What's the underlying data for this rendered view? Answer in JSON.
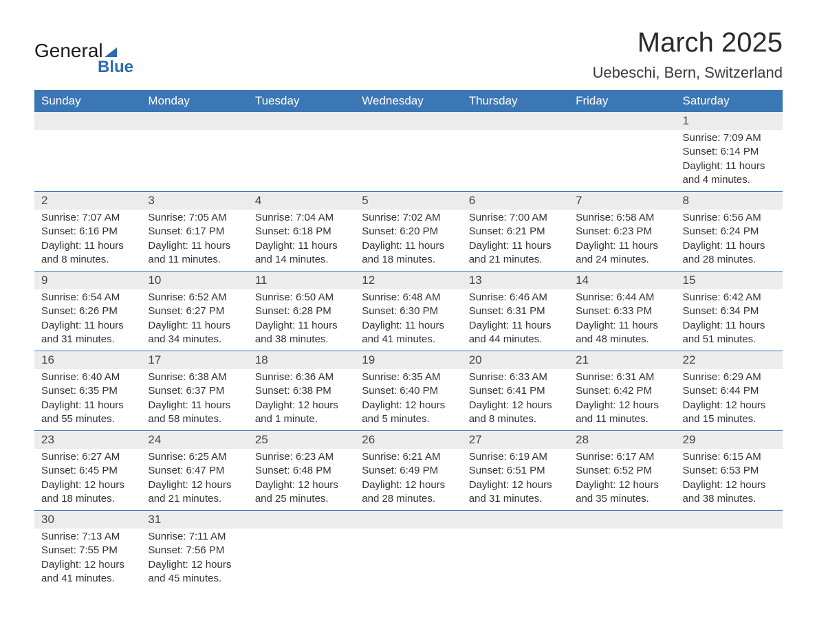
{
  "logo": {
    "text1": "General",
    "text2": "Blue"
  },
  "header": {
    "month_title": "March 2025",
    "location": "Uebeschi, Bern, Switzerland"
  },
  "colors": {
    "header_bg": "#3b76b5",
    "header_text": "#ffffff",
    "daynum_bg": "#ececec",
    "row_border": "#3b76b5",
    "body_text": "#333333"
  },
  "weekdays": [
    "Sunday",
    "Monday",
    "Tuesday",
    "Wednesday",
    "Thursday",
    "Friday",
    "Saturday"
  ],
  "weeks": [
    [
      null,
      null,
      null,
      null,
      null,
      null,
      {
        "n": "1",
        "sunrise": "7:09 AM",
        "sunset": "6:14 PM",
        "daylight": "11 hours and 4 minutes."
      }
    ],
    [
      {
        "n": "2",
        "sunrise": "7:07 AM",
        "sunset": "6:16 PM",
        "daylight": "11 hours and 8 minutes."
      },
      {
        "n": "3",
        "sunrise": "7:05 AM",
        "sunset": "6:17 PM",
        "daylight": "11 hours and 11 minutes."
      },
      {
        "n": "4",
        "sunrise": "7:04 AM",
        "sunset": "6:18 PM",
        "daylight": "11 hours and 14 minutes."
      },
      {
        "n": "5",
        "sunrise": "7:02 AM",
        "sunset": "6:20 PM",
        "daylight": "11 hours and 18 minutes."
      },
      {
        "n": "6",
        "sunrise": "7:00 AM",
        "sunset": "6:21 PM",
        "daylight": "11 hours and 21 minutes."
      },
      {
        "n": "7",
        "sunrise": "6:58 AM",
        "sunset": "6:23 PM",
        "daylight": "11 hours and 24 minutes."
      },
      {
        "n": "8",
        "sunrise": "6:56 AM",
        "sunset": "6:24 PM",
        "daylight": "11 hours and 28 minutes."
      }
    ],
    [
      {
        "n": "9",
        "sunrise": "6:54 AM",
        "sunset": "6:26 PM",
        "daylight": "11 hours and 31 minutes."
      },
      {
        "n": "10",
        "sunrise": "6:52 AM",
        "sunset": "6:27 PM",
        "daylight": "11 hours and 34 minutes."
      },
      {
        "n": "11",
        "sunrise": "6:50 AM",
        "sunset": "6:28 PM",
        "daylight": "11 hours and 38 minutes."
      },
      {
        "n": "12",
        "sunrise": "6:48 AM",
        "sunset": "6:30 PM",
        "daylight": "11 hours and 41 minutes."
      },
      {
        "n": "13",
        "sunrise": "6:46 AM",
        "sunset": "6:31 PM",
        "daylight": "11 hours and 44 minutes."
      },
      {
        "n": "14",
        "sunrise": "6:44 AM",
        "sunset": "6:33 PM",
        "daylight": "11 hours and 48 minutes."
      },
      {
        "n": "15",
        "sunrise": "6:42 AM",
        "sunset": "6:34 PM",
        "daylight": "11 hours and 51 minutes."
      }
    ],
    [
      {
        "n": "16",
        "sunrise": "6:40 AM",
        "sunset": "6:35 PM",
        "daylight": "11 hours and 55 minutes."
      },
      {
        "n": "17",
        "sunrise": "6:38 AM",
        "sunset": "6:37 PM",
        "daylight": "11 hours and 58 minutes."
      },
      {
        "n": "18",
        "sunrise": "6:36 AM",
        "sunset": "6:38 PM",
        "daylight": "12 hours and 1 minute."
      },
      {
        "n": "19",
        "sunrise": "6:35 AM",
        "sunset": "6:40 PM",
        "daylight": "12 hours and 5 minutes."
      },
      {
        "n": "20",
        "sunrise": "6:33 AM",
        "sunset": "6:41 PM",
        "daylight": "12 hours and 8 minutes."
      },
      {
        "n": "21",
        "sunrise": "6:31 AM",
        "sunset": "6:42 PM",
        "daylight": "12 hours and 11 minutes."
      },
      {
        "n": "22",
        "sunrise": "6:29 AM",
        "sunset": "6:44 PM",
        "daylight": "12 hours and 15 minutes."
      }
    ],
    [
      {
        "n": "23",
        "sunrise": "6:27 AM",
        "sunset": "6:45 PM",
        "daylight": "12 hours and 18 minutes."
      },
      {
        "n": "24",
        "sunrise": "6:25 AM",
        "sunset": "6:47 PM",
        "daylight": "12 hours and 21 minutes."
      },
      {
        "n": "25",
        "sunrise": "6:23 AM",
        "sunset": "6:48 PM",
        "daylight": "12 hours and 25 minutes."
      },
      {
        "n": "26",
        "sunrise": "6:21 AM",
        "sunset": "6:49 PM",
        "daylight": "12 hours and 28 minutes."
      },
      {
        "n": "27",
        "sunrise": "6:19 AM",
        "sunset": "6:51 PM",
        "daylight": "12 hours and 31 minutes."
      },
      {
        "n": "28",
        "sunrise": "6:17 AM",
        "sunset": "6:52 PM",
        "daylight": "12 hours and 35 minutes."
      },
      {
        "n": "29",
        "sunrise": "6:15 AM",
        "sunset": "6:53 PM",
        "daylight": "12 hours and 38 minutes."
      }
    ],
    [
      {
        "n": "30",
        "sunrise": "7:13 AM",
        "sunset": "7:55 PM",
        "daylight": "12 hours and 41 minutes."
      },
      {
        "n": "31",
        "sunrise": "7:11 AM",
        "sunset": "7:56 PM",
        "daylight": "12 hours and 45 minutes."
      },
      null,
      null,
      null,
      null,
      null
    ]
  ],
  "labels": {
    "sunrise_prefix": "Sunrise: ",
    "sunset_prefix": "Sunset: ",
    "daylight_prefix": "Daylight: "
  }
}
